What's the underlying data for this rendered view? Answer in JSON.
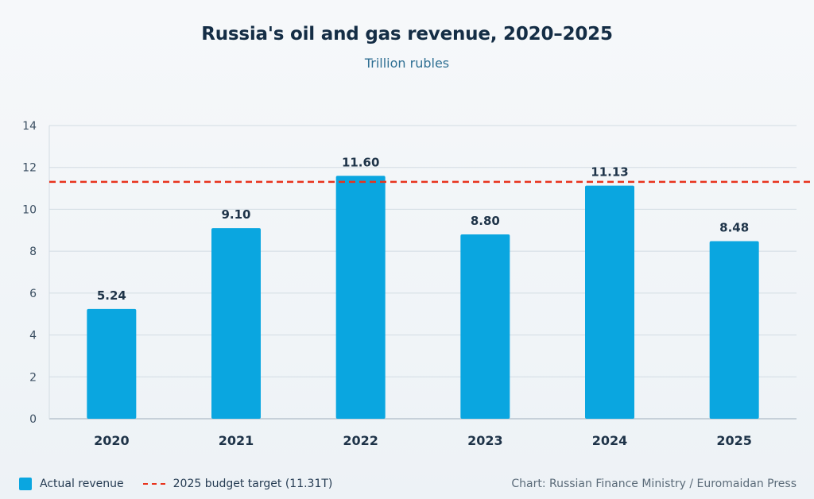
{
  "chart_data": {
    "type": "bar",
    "title": "Russia's oil and gas revenue, 2020–2025",
    "subtitle": "Trillion rubles",
    "categories": [
      "2020",
      "2021",
      "2022",
      "2023",
      "2024",
      "2025"
    ],
    "values": [
      5.24,
      9.1,
      11.6,
      8.8,
      11.13,
      8.48
    ],
    "value_labels": [
      "5.24",
      "9.10",
      "11.60",
      "8.80",
      "11.13",
      "8.48"
    ],
    "ylim": [
      0,
      14
    ],
    "yticks": [
      0,
      2,
      4,
      6,
      8,
      10,
      12,
      14
    ],
    "grid": true,
    "reference_line": {
      "value": 11.31,
      "label": "2025 budget target (11.31T)",
      "color": "#e8331c",
      "style": "dashed"
    },
    "series": [
      {
        "name": "Actual revenue",
        "color": "#0aa6e0"
      }
    ],
    "legend_position": "bottom-left",
    "source": "Chart: Russian Finance Ministry / Euromaidan Press"
  }
}
